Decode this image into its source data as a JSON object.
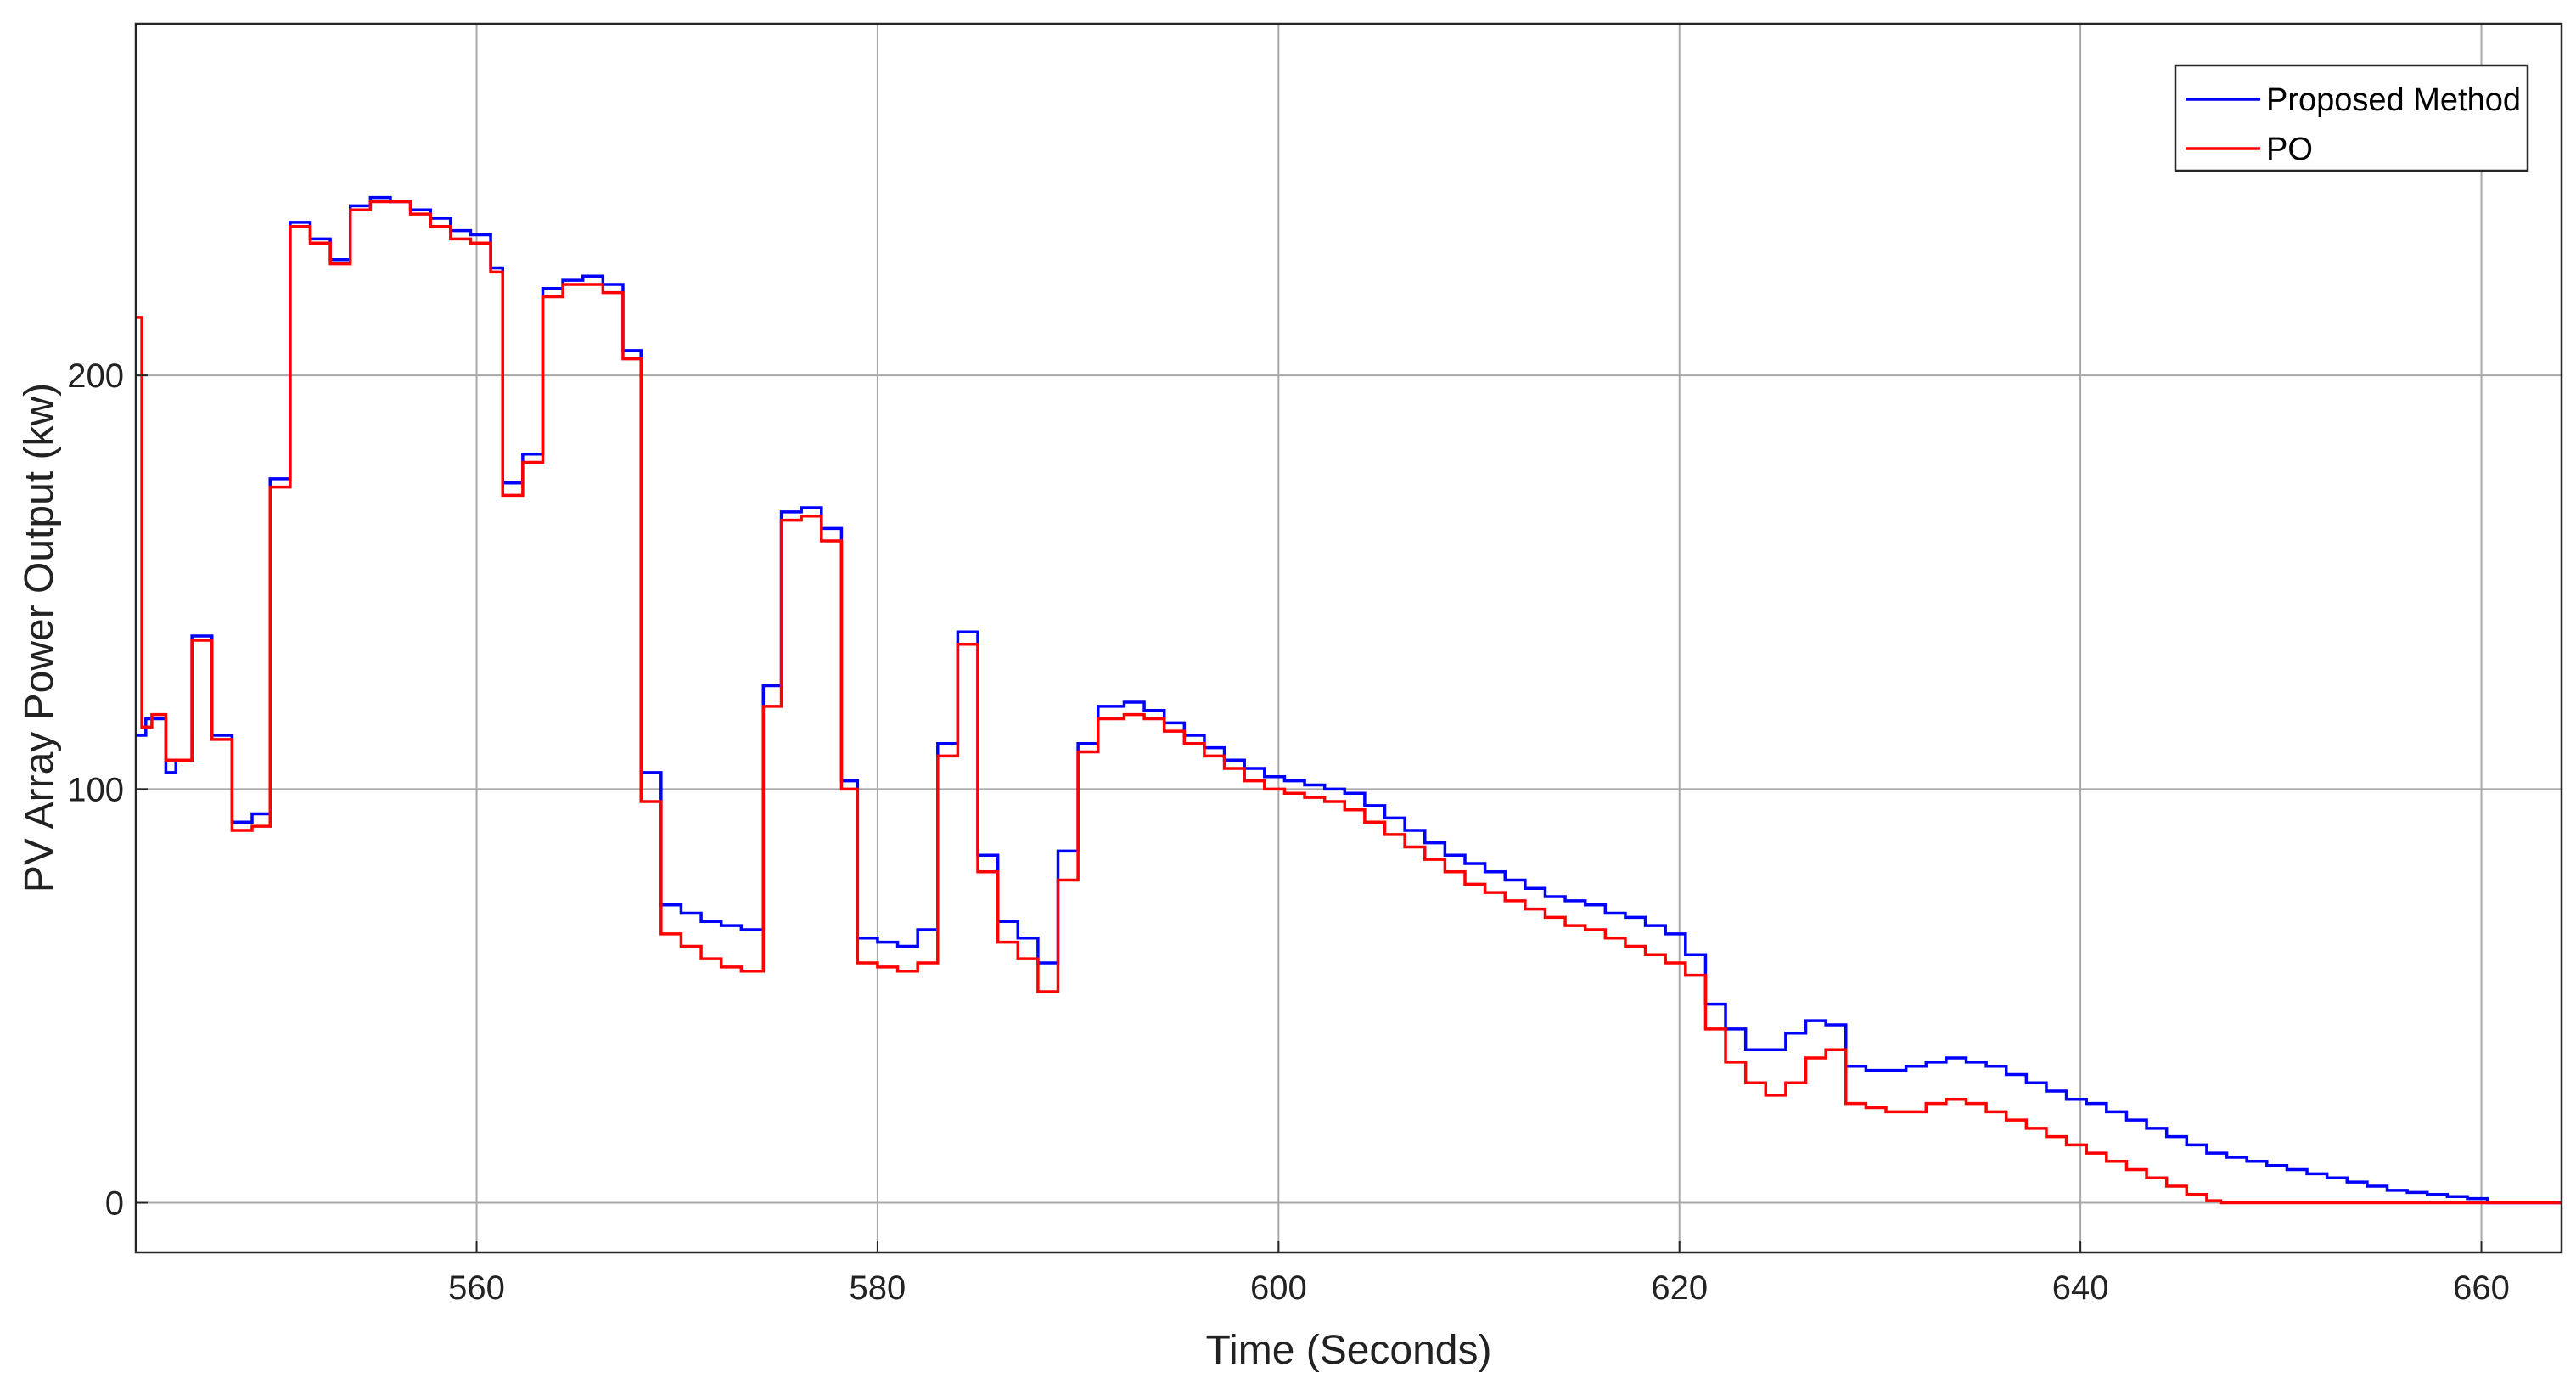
{
  "chart_data": {
    "type": "line",
    "title": "",
    "xlabel": "Time (Seconds)",
    "ylabel": "PV Array Power Output (kw)",
    "xlim": [
      543,
      664
    ],
    "ylim": [
      -12,
      285
    ],
    "xticks": [
      560,
      580,
      600,
      620,
      640,
      660
    ],
    "yticks": [
      0,
      100,
      200
    ],
    "xtick_labels": [
      "560",
      "580",
      "600",
      "620",
      "640",
      "660"
    ],
    "ytick_labels": [
      "0",
      "100",
      "200"
    ],
    "grid": true,
    "legend_position": "top-right",
    "series": [
      {
        "name": "Proposed Method",
        "color": "#0000ff",
        "step": true,
        "points": [
          [
            543,
            113
          ],
          [
            543.5,
            117
          ],
          [
            544.5,
            104
          ],
          [
            545,
            107
          ],
          [
            545.8,
            137
          ],
          [
            546.8,
            113
          ],
          [
            547.8,
            92
          ],
          [
            548.8,
            94
          ],
          [
            549.7,
            175
          ],
          [
            550.7,
            237
          ],
          [
            551.7,
            233
          ],
          [
            552.7,
            228
          ],
          [
            553.7,
            241
          ],
          [
            554.7,
            243
          ],
          [
            555.7,
            242
          ],
          [
            556.7,
            240
          ],
          [
            557.7,
            238
          ],
          [
            558.7,
            235
          ],
          [
            559.7,
            234
          ],
          [
            560.7,
            226
          ],
          [
            561.3,
            174
          ],
          [
            562.3,
            181
          ],
          [
            563.3,
            221
          ],
          [
            564.3,
            223
          ],
          [
            565.3,
            224
          ],
          [
            566.3,
            222
          ],
          [
            567.3,
            206
          ],
          [
            568.2,
            104
          ],
          [
            569.2,
            72
          ],
          [
            570.2,
            70
          ],
          [
            571.2,
            68
          ],
          [
            572.2,
            67
          ],
          [
            573.2,
            66
          ],
          [
            574.2,
            66
          ],
          [
            574.3,
            125
          ],
          [
            575.2,
            167
          ],
          [
            576.2,
            168
          ],
          [
            577.2,
            163
          ],
          [
            578.2,
            102
          ],
          [
            579,
            64
          ],
          [
            580,
            63
          ],
          [
            581,
            62
          ],
          [
            582,
            66
          ],
          [
            583,
            111
          ],
          [
            584,
            138
          ],
          [
            585,
            84
          ],
          [
            586,
            68
          ],
          [
            587,
            64
          ],
          [
            588,
            58
          ],
          [
            589,
            85
          ],
          [
            590,
            111
          ],
          [
            591,
            120
          ],
          [
            592.3,
            121
          ],
          [
            593.3,
            119
          ],
          [
            594.3,
            116
          ],
          [
            595.3,
            113
          ],
          [
            596.3,
            110
          ],
          [
            597.3,
            107
          ],
          [
            598.3,
            105
          ],
          [
            599.3,
            103
          ],
          [
            600.3,
            102
          ],
          [
            601.3,
            101
          ],
          [
            602.3,
            100
          ],
          [
            603.3,
            99
          ],
          [
            604.3,
            96
          ],
          [
            605.3,
            93
          ],
          [
            606.3,
            90
          ],
          [
            607.3,
            87
          ],
          [
            608.3,
            84
          ],
          [
            609.3,
            82
          ],
          [
            610.3,
            80
          ],
          [
            611.3,
            78
          ],
          [
            612.3,
            76
          ],
          [
            613.3,
            74
          ],
          [
            614.3,
            73
          ],
          [
            615.3,
            72
          ],
          [
            616.3,
            70
          ],
          [
            617.3,
            69
          ],
          [
            618.3,
            67
          ],
          [
            619.3,
            65
          ],
          [
            620.3,
            60
          ],
          [
            621.3,
            48
          ],
          [
            622.3,
            42
          ],
          [
            623.3,
            37
          ],
          [
            624.3,
            37
          ],
          [
            625.3,
            41
          ],
          [
            626.3,
            44
          ],
          [
            627.3,
            43
          ],
          [
            628.3,
            33
          ],
          [
            629.3,
            32
          ],
          [
            630.3,
            32
          ],
          [
            631.3,
            33
          ],
          [
            632.3,
            34
          ],
          [
            633.3,
            35
          ],
          [
            634.3,
            34
          ],
          [
            635.3,
            33
          ],
          [
            636.3,
            31
          ],
          [
            637.3,
            29
          ],
          [
            638.3,
            27
          ],
          [
            639.3,
            25
          ],
          [
            640.3,
            24
          ],
          [
            641.3,
            22
          ],
          [
            642.3,
            20
          ],
          [
            643.3,
            18
          ],
          [
            644.3,
            16
          ],
          [
            645.3,
            14
          ],
          [
            646.3,
            12
          ],
          [
            647.3,
            11
          ],
          [
            648.3,
            10
          ],
          [
            649.3,
            9
          ],
          [
            650.3,
            8
          ],
          [
            651.3,
            7
          ],
          [
            652.3,
            6
          ],
          [
            653.3,
            5
          ],
          [
            654.3,
            4
          ],
          [
            655.3,
            3
          ],
          [
            656.3,
            2.5
          ],
          [
            657.3,
            2
          ],
          [
            658.3,
            1.5
          ],
          [
            659.3,
            1
          ],
          [
            660.3,
            0
          ],
          [
            664,
            0
          ]
        ]
      },
      {
        "name": "PO",
        "color": "#ff0000",
        "step": true,
        "points": [
          [
            543,
            214
          ],
          [
            543.3,
            115
          ],
          [
            543.8,
            118
          ],
          [
            544.5,
            107
          ],
          [
            545.8,
            136
          ],
          [
            546.8,
            112
          ],
          [
            547.8,
            90
          ],
          [
            548.8,
            91
          ],
          [
            549.7,
            173
          ],
          [
            550.7,
            236
          ],
          [
            551.7,
            232
          ],
          [
            552.7,
            227
          ],
          [
            553.7,
            240
          ],
          [
            554.7,
            242
          ],
          [
            555.7,
            242
          ],
          [
            556.7,
            239
          ],
          [
            557.7,
            236
          ],
          [
            558.7,
            233
          ],
          [
            559.7,
            232
          ],
          [
            560.7,
            225
          ],
          [
            561.3,
            171
          ],
          [
            562.3,
            179
          ],
          [
            563.3,
            219
          ],
          [
            564.3,
            222
          ],
          [
            565.3,
            222
          ],
          [
            566.3,
            220
          ],
          [
            567.3,
            204
          ],
          [
            568.2,
            97
          ],
          [
            569.2,
            65
          ],
          [
            570.2,
            62
          ],
          [
            571.2,
            59
          ],
          [
            572.2,
            57
          ],
          [
            573.2,
            56
          ],
          [
            574.2,
            56
          ],
          [
            574.3,
            120
          ],
          [
            575.2,
            165
          ],
          [
            576.2,
            166
          ],
          [
            577.2,
            160
          ],
          [
            578.2,
            100
          ],
          [
            579,
            58
          ],
          [
            580,
            57
          ],
          [
            581,
            56
          ],
          [
            582,
            58
          ],
          [
            583,
            108
          ],
          [
            584,
            135
          ],
          [
            585,
            80
          ],
          [
            586,
            63
          ],
          [
            587,
            59
          ],
          [
            588,
            51
          ],
          [
            589,
            78
          ],
          [
            590,
            109
          ],
          [
            591,
            117
          ],
          [
            592.3,
            118
          ],
          [
            593.3,
            117
          ],
          [
            594.3,
            114
          ],
          [
            595.3,
            111
          ],
          [
            596.3,
            108
          ],
          [
            597.3,
            105
          ],
          [
            598.3,
            102
          ],
          [
            599.3,
            100
          ],
          [
            600.3,
            99
          ],
          [
            601.3,
            98
          ],
          [
            602.3,
            97
          ],
          [
            603.3,
            95
          ],
          [
            604.3,
            92
          ],
          [
            605.3,
            89
          ],
          [
            606.3,
            86
          ],
          [
            607.3,
            83
          ],
          [
            608.3,
            80
          ],
          [
            609.3,
            77
          ],
          [
            610.3,
            75
          ],
          [
            611.3,
            73
          ],
          [
            612.3,
            71
          ],
          [
            613.3,
            69
          ],
          [
            614.3,
            67
          ],
          [
            615.3,
            66
          ],
          [
            616.3,
            64
          ],
          [
            617.3,
            62
          ],
          [
            618.3,
            60
          ],
          [
            619.3,
            58
          ],
          [
            620.3,
            55
          ],
          [
            621.3,
            42
          ],
          [
            622.3,
            34
          ],
          [
            623.3,
            29
          ],
          [
            624.3,
            26
          ],
          [
            625.3,
            29
          ],
          [
            626.3,
            35
          ],
          [
            627.3,
            37
          ],
          [
            628.3,
            24
          ],
          [
            629.3,
            23
          ],
          [
            630.3,
            22
          ],
          [
            631.3,
            22
          ],
          [
            632.3,
            24
          ],
          [
            633.3,
            25
          ],
          [
            634.3,
            24
          ],
          [
            635.3,
            22
          ],
          [
            636.3,
            20
          ],
          [
            637.3,
            18
          ],
          [
            638.3,
            16
          ],
          [
            639.3,
            14
          ],
          [
            640.3,
            12
          ],
          [
            641.3,
            10
          ],
          [
            642.3,
            8
          ],
          [
            643.3,
            6
          ],
          [
            644.3,
            4
          ],
          [
            645.3,
            2
          ],
          [
            646.3,
            0.5
          ],
          [
            647,
            0
          ],
          [
            664,
            0
          ]
        ]
      }
    ]
  }
}
